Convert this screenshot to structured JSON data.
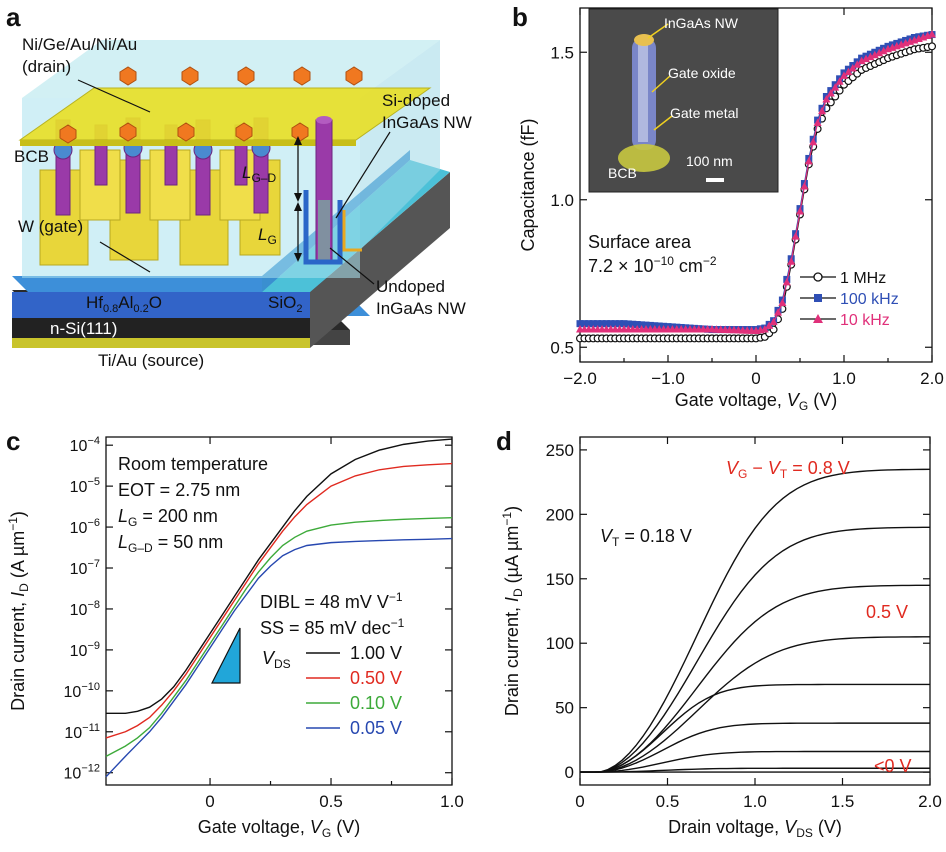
{
  "panel_labels": {
    "a": "a",
    "b": "b",
    "c": "c",
    "d": "d"
  },
  "schematic": {
    "drain_label_1": "Ni/Ge/Au/Ni/Au",
    "drain_label_2": "(drain)",
    "bcb": "BCB",
    "w_gate": "W (gate)",
    "hfalo_1": "Hf",
    "hfalo_sub1": "0.8",
    "hfalo_2": "Al",
    "hfalo_sub2": "0.2",
    "hfalo_3": "O",
    "sio2_1": "SiO",
    "sio2_sub": "2",
    "nsi": "n-Si(111)",
    "source": "Ti/Au (source)",
    "si_doped_1": "Si-doped",
    "si_doped_2": "InGaAs NW",
    "undoped_1": "Undoped",
    "undoped_2": "InGaAs NW",
    "lgd_main": "L",
    "lgd_sub": "G–D",
    "lg_main": "L",
    "lg_sub": "G"
  },
  "inset": {
    "nw": "InGaAs NW",
    "oxide": "Gate oxide",
    "metal": "Gate metal",
    "bcb": "BCB",
    "scale": "100 nm"
  },
  "chart_data": [
    {
      "panel": "b",
      "type": "line",
      "xlabel_main": "Gate voltage, ",
      "xlabel_var": "V",
      "xlabel_sub": "G",
      "xlabel_unit": " (V)",
      "ylabel": "Capacitance (fF)",
      "xlim": [
        -2.0,
        2.0
      ],
      "ylim": [
        0.45,
        1.65
      ],
      "xticks": [
        "−2.0",
        "−1.0",
        "0",
        "1.0",
        "2.0"
      ],
      "xtick_values": [
        -2.0,
        -1.0,
        0,
        1.0,
        2.0
      ],
      "yticks": [
        "0.5",
        "1.0",
        "1.5"
      ],
      "ytick_values": [
        0.5,
        1.0,
        1.5
      ],
      "annotation_1": "Surface area",
      "annotation_2": "7.2 × 10",
      "annotation_2_exp": "−10",
      "annotation_2_unit": " cm",
      "annotation_2_unit_exp": "−2",
      "series": [
        {
          "name": "1 MHz",
          "color": "#111111",
          "marker": "open-circle",
          "x": [
            -2.0,
            -1.5,
            -1.0,
            -0.5,
            0.0,
            0.1,
            0.2,
            0.3,
            0.4,
            0.5,
            0.6,
            0.7,
            0.8,
            1.0,
            1.2,
            1.5,
            1.8,
            2.0
          ],
          "y": [
            0.53,
            0.53,
            0.53,
            0.53,
            0.53,
            0.535,
            0.56,
            0.63,
            0.78,
            0.95,
            1.12,
            1.24,
            1.31,
            1.39,
            1.44,
            1.48,
            1.51,
            1.52
          ]
        },
        {
          "name": "100 kHz",
          "color": "#2f4fb5",
          "marker": "square",
          "x": [
            -2.0,
            -1.5,
            -1.0,
            -0.5,
            0.0,
            0.1,
            0.2,
            0.3,
            0.4,
            0.5,
            0.6,
            0.7,
            0.8,
            1.0,
            1.2,
            1.5,
            1.8,
            2.0
          ],
          "y": [
            0.58,
            0.58,
            0.57,
            0.56,
            0.56,
            0.565,
            0.59,
            0.66,
            0.8,
            0.97,
            1.14,
            1.27,
            1.35,
            1.43,
            1.48,
            1.52,
            1.55,
            1.56
          ]
        },
        {
          "name": "10 kHz",
          "color": "#e0307a",
          "marker": "triangle",
          "x": [
            -2.0,
            -1.5,
            -1.0,
            -0.5,
            0.0,
            0.1,
            0.2,
            0.3,
            0.4,
            0.5,
            0.6,
            0.7,
            0.8,
            1.0,
            1.2,
            1.5,
            1.8,
            2.0
          ],
          "y": [
            0.56,
            0.56,
            0.56,
            0.56,
            0.555,
            0.56,
            0.585,
            0.65,
            0.79,
            0.96,
            1.13,
            1.26,
            1.34,
            1.42,
            1.47,
            1.51,
            1.54,
            1.56
          ]
        }
      ]
    },
    {
      "panel": "c",
      "type": "line",
      "yscale": "log",
      "xlabel_main": "Gate voltage, ",
      "xlabel_var": "V",
      "xlabel_sub": "G",
      "xlabel_unit": " (V)",
      "ylabel_main": "Drain current, ",
      "ylabel_var": "I",
      "ylabel_sub": "D",
      "ylabel_unit": " (A µm",
      "ylabel_unit_exp": "−1",
      "ylabel_close": ")",
      "xlim": [
        -0.43,
        1.0
      ],
      "ylim_exp": [
        -12.3,
        -3.8
      ],
      "xticks": [
        "0",
        "0.5",
        "1.0"
      ],
      "xtick_values": [
        0,
        0.5,
        1.0
      ],
      "ytick_exponents": [
        -12,
        -11,
        -10,
        -9,
        -8,
        -7,
        -6,
        -5,
        -4
      ],
      "ytick_base": "10",
      "annotations": {
        "room_temp": "Room temperature",
        "eot": "EOT = 2.75 nm",
        "lg_var": "L",
        "lg_sub": "G",
        "lg_val": " = 200 nm",
        "lgd_var": "L",
        "lgd_sub": "G–D",
        "lgd_val": " = 50 nm",
        "dibl": "DIBL = 48 mV V",
        "dibl_exp": "−1",
        "ss": "SS = 85 mV dec",
        "ss_exp": "−1",
        "vds_var": "V",
        "vds_sub": "DS"
      },
      "series": [
        {
          "name": "1.00 V",
          "color": "#111111",
          "x": [
            -0.43,
            -0.35,
            -0.3,
            -0.25,
            -0.2,
            -0.15,
            -0.1,
            -0.05,
            0.0,
            0.05,
            0.1,
            0.15,
            0.2,
            0.25,
            0.3,
            0.35,
            0.4,
            0.5,
            0.6,
            0.7,
            0.8,
            0.9,
            1.0
          ],
          "y": [
            -10.55,
            -10.55,
            -10.5,
            -10.4,
            -10.2,
            -9.9,
            -9.5,
            -9.05,
            -8.6,
            -8.15,
            -7.7,
            -7.25,
            -6.8,
            -6.4,
            -6.0,
            -5.6,
            -5.25,
            -4.7,
            -4.35,
            -4.12,
            -3.98,
            -3.9,
            -3.85
          ]
        },
        {
          "name": "0.50 V",
          "color": "#e02a20",
          "x": [
            -0.43,
            -0.35,
            -0.3,
            -0.25,
            -0.2,
            -0.15,
            -0.1,
            -0.05,
            0.0,
            0.05,
            0.1,
            0.15,
            0.2,
            0.25,
            0.3,
            0.35,
            0.4,
            0.5,
            0.6,
            0.7,
            0.8,
            0.9,
            1.0
          ],
          "y": [
            -11.15,
            -11.0,
            -10.85,
            -10.65,
            -10.35,
            -10.0,
            -9.6,
            -9.15,
            -8.7,
            -8.25,
            -7.8,
            -7.35,
            -6.9,
            -6.5,
            -6.1,
            -5.75,
            -5.45,
            -5.0,
            -4.75,
            -4.6,
            -4.52,
            -4.48,
            -4.45
          ]
        },
        {
          "name": "0.10 V",
          "color": "#3daa3a",
          "x": [
            -0.43,
            -0.35,
            -0.3,
            -0.25,
            -0.2,
            -0.15,
            -0.1,
            -0.05,
            0.0,
            0.05,
            0.1,
            0.15,
            0.2,
            0.25,
            0.3,
            0.35,
            0.4,
            0.5,
            0.6,
            0.7,
            0.8,
            0.9,
            1.0
          ],
          "y": [
            -11.6,
            -11.35,
            -11.15,
            -10.9,
            -10.55,
            -10.15,
            -9.75,
            -9.3,
            -8.85,
            -8.4,
            -7.95,
            -7.5,
            -7.1,
            -6.75,
            -6.45,
            -6.25,
            -6.1,
            -5.95,
            -5.88,
            -5.84,
            -5.81,
            -5.79,
            -5.77
          ]
        },
        {
          "name": "0.05 V",
          "color": "#2748b0",
          "x": [
            -0.43,
            -0.35,
            -0.3,
            -0.25,
            -0.2,
            -0.15,
            -0.1,
            -0.05,
            0.0,
            0.05,
            0.1,
            0.15,
            0.2,
            0.25,
            0.3,
            0.35,
            0.4,
            0.5,
            0.6,
            0.7,
            0.8,
            0.9,
            1.0
          ],
          "y": [
            -12.1,
            -11.6,
            -11.3,
            -11.0,
            -10.65,
            -10.25,
            -9.85,
            -9.4,
            -8.95,
            -8.5,
            -8.05,
            -7.65,
            -7.25,
            -6.95,
            -6.7,
            -6.55,
            -6.45,
            -6.38,
            -6.35,
            -6.33,
            -6.31,
            -6.3,
            -6.28
          ]
        }
      ]
    },
    {
      "panel": "d",
      "type": "line",
      "xlabel_main": "Drain voltage, ",
      "xlabel_var": "V",
      "xlabel_sub": "DS",
      "xlabel_unit": " (V)",
      "ylabel_main": "Drain current, ",
      "ylabel_var": "I",
      "ylabel_sub": "D",
      "ylabel_unit": " (µA µm",
      "ylabel_unit_exp": "−1",
      "ylabel_close": ")",
      "xlim": [
        0,
        2.0
      ],
      "ylim": [
        -10,
        260
      ],
      "xticks": [
        "0",
        "0.5",
        "1.0",
        "1.5",
        "2.0"
      ],
      "xtick_values": [
        0,
        0.5,
        1.0,
        1.5,
        2.0
      ],
      "yticks": [
        "0",
        "50",
        "100",
        "150",
        "200",
        "250"
      ],
      "ytick_values": [
        0,
        50,
        100,
        150,
        200,
        250
      ],
      "annotations": {
        "top_v1": "V",
        "top_v1_sub": "G",
        "top_mid": " − ",
        "top_v2": "V",
        "top_v2_sub": "T",
        "top_val": " = 0.8 V",
        "mid": "0.5 V",
        "bottom": "<0 V",
        "vt_var": "V",
        "vt_sub": "T",
        "vt_val": " = 0.18 V"
      },
      "series_saturation": [
        0,
        3,
        16,
        38,
        68,
        105,
        145,
        190,
        235
      ],
      "color": "#111111"
    }
  ]
}
